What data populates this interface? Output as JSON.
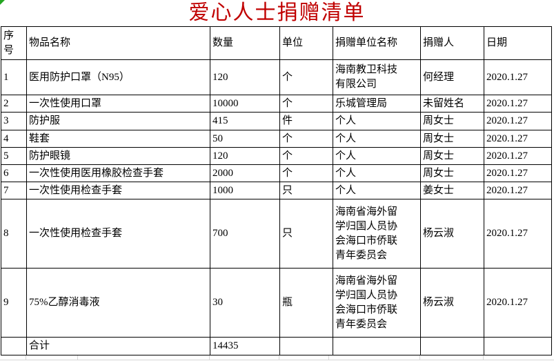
{
  "title": "爱心人士捐赠清单",
  "colors": {
    "title_red": "#c00000",
    "border_black": "#000000",
    "grid_gray": "#d6d6d6",
    "marker_green": "#24a520"
  },
  "table": {
    "headers": [
      "序\n号",
      "物品名称",
      "数量",
      "单位",
      "捐赠单位名称",
      "捐赠人",
      "日期"
    ],
    "rows": [
      [
        "1",
        "医用防护口罩（N95）",
        "120",
        "个",
        "海南教卫科技\n有限公司",
        "何经理",
        "2020.1.27"
      ],
      [
        "2",
        "一次性使用口罩",
        "10000",
        "个",
        "乐城管理局",
        "未留姓名",
        "2020.1.27"
      ],
      [
        "3",
        "防护服",
        "415",
        "件",
        "个人",
        "周女士",
        "2020.1.27"
      ],
      [
        "4",
        "鞋套",
        "50",
        "个",
        "个人",
        "周女士",
        "2020.1.27"
      ],
      [
        "5",
        "防护眼镜",
        "120",
        "个",
        "个人",
        "周女士",
        "2020.1.27"
      ],
      [
        "6",
        "一次性使用医用橡胶检查手套",
        "2000",
        "个",
        "个人",
        "周女士",
        "2020.1.27"
      ],
      [
        "7",
        "一次性使用检查手套",
        "1000",
        "只",
        "个人",
        "姜女士",
        "2020.1.27"
      ],
      [
        "8",
        "一次性使用检查手套",
        "700",
        "只",
        "海南省海外留\n学归国人员协\n会海口市侨联\n青年委员会",
        "杨云淑",
        "2020.1.27"
      ],
      [
        "9",
        "75%乙醇消毒液",
        "30",
        "瓶",
        "海南省海外留\n学归国人员协\n会海口市侨联\n青年委员会",
        "杨云淑",
        "2020.1.27"
      ],
      [
        "",
        "合计",
        "14435",
        "",
        "",
        "",
        ""
      ]
    ]
  }
}
